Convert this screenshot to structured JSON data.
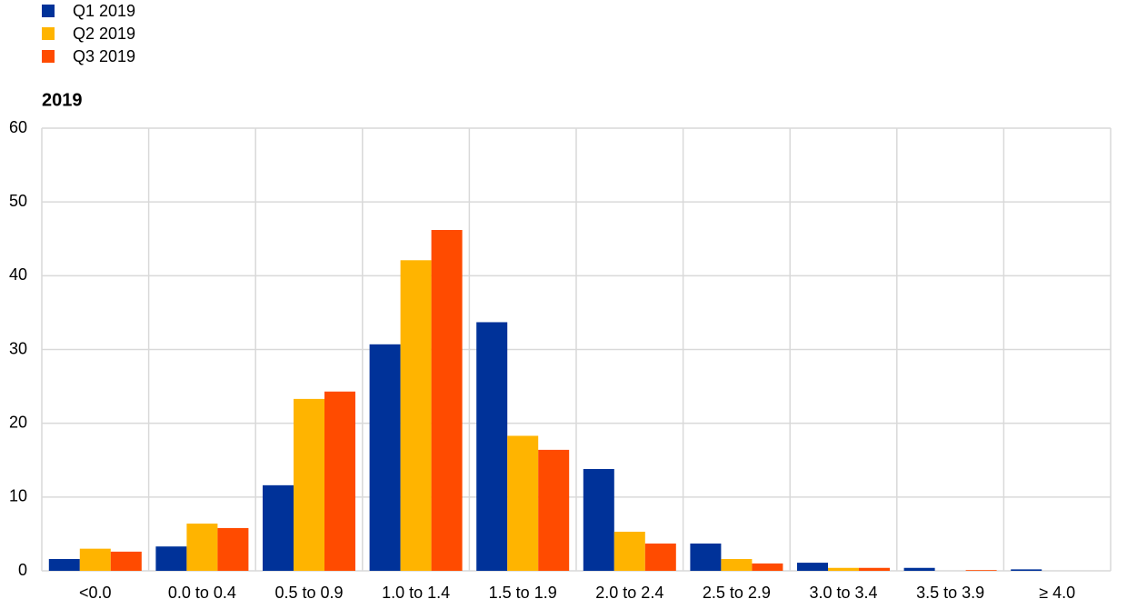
{
  "chart_data": {
    "type": "bar",
    "title": "2019",
    "categories": [
      "<0.0",
      "0.0 to 0.4",
      "0.5 to 0.9",
      "1.0 to 1.4",
      "1.5 to 1.9",
      "2.0 to 2.4",
      "2.5 to 2.9",
      "3.0 to 3.4",
      "3.5 to 3.9",
      "≥ 4.0"
    ],
    "series": [
      {
        "name": "Q1 2019",
        "color": "#003299",
        "values": [
          1.6,
          3.3,
          11.6,
          30.7,
          33.7,
          13.8,
          3.7,
          1.1,
          0.4,
          0.2
        ]
      },
      {
        "name": "Q2 2019",
        "color": "#ffb400",
        "values": [
          3.0,
          6.4,
          23.3,
          42.1,
          18.3,
          5.3,
          1.6,
          0.4,
          0,
          0
        ]
      },
      {
        "name": "Q3 2019",
        "color": "#ff4b00",
        "values": [
          2.6,
          5.8,
          24.3,
          46.2,
          16.4,
          3.7,
          1.0,
          0.4,
          0.1,
          0
        ]
      }
    ],
    "ylim": [
      0,
      60
    ],
    "yticks": [
      0,
      10,
      20,
      30,
      40,
      50,
      60
    ],
    "grid": true,
    "legend": "top-left"
  }
}
